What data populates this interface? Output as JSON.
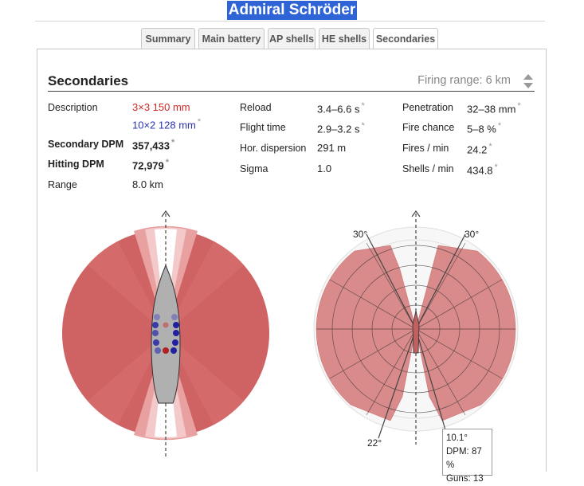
{
  "page": {
    "title": "Admiral Schröder"
  },
  "tabs": [
    {
      "label": "Summary"
    },
    {
      "label": "Main battery"
    },
    {
      "label": "AP shells"
    },
    {
      "label": "HE shells"
    },
    {
      "label": "Secondaries"
    }
  ],
  "section": {
    "title": "Secondaries",
    "firing_range_label": "Firing range:",
    "firing_range_value": "6 km"
  },
  "stats": {
    "description_label": "Description",
    "desc_line1": "3×3 150 mm",
    "desc_line2": "10×2 128 mm",
    "secondary_dpm_label": "Secondary DPM",
    "secondary_dpm_value": "357,433",
    "hitting_dpm_label": "Hitting DPM",
    "hitting_dpm_value": "72,979",
    "range_label": "Range",
    "range_value": "8.0 km",
    "reload_label": "Reload",
    "reload_value": "3.4–6.6 s",
    "flight_time_label": "Flight time",
    "flight_time_value": "2.9–3.2 s",
    "hor_dispersion_label": "Hor. dispersion",
    "hor_dispersion_value": "291 m",
    "sigma_label": "Sigma",
    "sigma_value": "1.0",
    "penetration_label": "Penetration",
    "penetration_value": "32–38 mm",
    "fire_chance_label": "Fire chance",
    "fire_chance_value": "5–8 %",
    "fires_min_label": "Fires / min",
    "fires_min_value": "24.2",
    "shells_min_label": "Shells / min",
    "shells_min_value": "434.8",
    "asterisk": "*"
  },
  "angle_labels": {
    "left_top": "30°",
    "right_top": "30°",
    "left_bottom": "22°"
  },
  "tooltip": {
    "angle": "10.1°",
    "dpm": "DPM: 87 %",
    "guns": "Guns: 13"
  },
  "colors": {
    "title_bg": "#2f64d6",
    "coverage": "#cc5555",
    "hull": "#b0b0b0",
    "turret_red": "#b02020",
    "turret_blue": "#2020a0"
  }
}
